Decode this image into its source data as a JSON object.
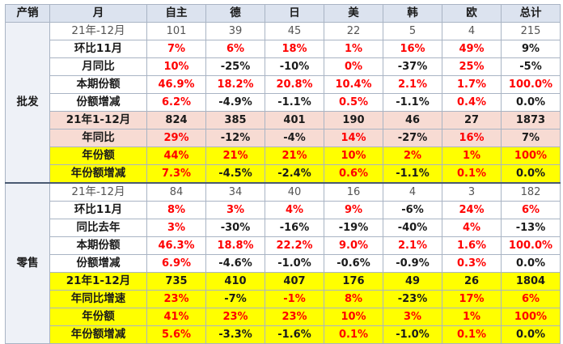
{
  "header": [
    "产销",
    "月",
    "自主",
    "德",
    "日",
    "美",
    "韩",
    "欧",
    "总计"
  ],
  "sections": [
    {
      "name": "批发",
      "rows": [
        {
          "label": "21年-12月",
          "style": "plain",
          "cells": [
            {
              "v": "101",
              "c": "gry"
            },
            {
              "v": "39",
              "c": "gry"
            },
            {
              "v": "45",
              "c": "gry"
            },
            {
              "v": "22",
              "c": "gry"
            },
            {
              "v": "5",
              "c": "gry"
            },
            {
              "v": "4",
              "c": "gry"
            },
            {
              "v": "215",
              "c": "gry"
            }
          ]
        },
        {
          "label": "环比11月",
          "style": "normal",
          "cells": [
            {
              "v": "7%",
              "c": "red"
            },
            {
              "v": "6%",
              "c": "red"
            },
            {
              "v": "18%",
              "c": "red"
            },
            {
              "v": "1%",
              "c": "red"
            },
            {
              "v": "16%",
              "c": "red"
            },
            {
              "v": "49%",
              "c": "red"
            },
            {
              "v": "9%",
              "c": "blk"
            }
          ]
        },
        {
          "label": "月同比",
          "style": "normal",
          "cells": [
            {
              "v": "10%",
              "c": "red"
            },
            {
              "v": "-25%",
              "c": "blk"
            },
            {
              "v": "-10%",
              "c": "blk"
            },
            {
              "v": "0%",
              "c": "red"
            },
            {
              "v": "-37%",
              "c": "blk"
            },
            {
              "v": "25%",
              "c": "red"
            },
            {
              "v": "-5%",
              "c": "blk"
            }
          ]
        },
        {
          "label": "本期份额",
          "style": "normal",
          "cells": [
            {
              "v": "46.9%",
              "c": "red"
            },
            {
              "v": "18.2%",
              "c": "red"
            },
            {
              "v": "20.8%",
              "c": "red"
            },
            {
              "v": "10.4%",
              "c": "red"
            },
            {
              "v": "2.1%",
              "c": "red"
            },
            {
              "v": "1.7%",
              "c": "red"
            },
            {
              "v": "100.0%",
              "c": "red"
            }
          ]
        },
        {
          "label": "份额增减",
          "style": "normal",
          "cells": [
            {
              "v": "6.2%",
              "c": "red"
            },
            {
              "v": "-4.9%",
              "c": "blk"
            },
            {
              "v": "-1.1%",
              "c": "blk"
            },
            {
              "v": "0.5%",
              "c": "red"
            },
            {
              "v": "-1.1%",
              "c": "blk"
            },
            {
              "v": "0.4%",
              "c": "red"
            },
            {
              "v": "0.0%",
              "c": "blk"
            }
          ]
        },
        {
          "label": "21年1-12月",
          "style": "pink",
          "cells": [
            {
              "v": "824",
              "c": "blk"
            },
            {
              "v": "385",
              "c": "blk"
            },
            {
              "v": "401",
              "c": "blk"
            },
            {
              "v": "190",
              "c": "blk"
            },
            {
              "v": "46",
              "c": "blk"
            },
            {
              "v": "27",
              "c": "blk"
            },
            {
              "v": "1873",
              "c": "blk"
            }
          ]
        },
        {
          "label": "年同比",
          "style": "pink",
          "cells": [
            {
              "v": "29%",
              "c": "red"
            },
            {
              "v": "-12%",
              "c": "blk"
            },
            {
              "v": "-4%",
              "c": "blk"
            },
            {
              "v": "14%",
              "c": "red"
            },
            {
              "v": "-27%",
              "c": "blk"
            },
            {
              "v": "16%",
              "c": "red"
            },
            {
              "v": "7%",
              "c": "blk"
            }
          ]
        },
        {
          "label": "年份额",
          "style": "yellow",
          "cells": [
            {
              "v": "44%",
              "c": "red"
            },
            {
              "v": "21%",
              "c": "red"
            },
            {
              "v": "21%",
              "c": "red"
            },
            {
              "v": "10%",
              "c": "red"
            },
            {
              "v": "2%",
              "c": "red"
            },
            {
              "v": "1%",
              "c": "red"
            },
            {
              "v": "100%",
              "c": "red"
            }
          ]
        },
        {
          "label": "年份额增减",
          "style": "yellow",
          "cells": [
            {
              "v": "7.3%",
              "c": "red"
            },
            {
              "v": "-4.5%",
              "c": "blk"
            },
            {
              "v": "-2.4%",
              "c": "blk"
            },
            {
              "v": "0.6%",
              "c": "red"
            },
            {
              "v": "-1.1%",
              "c": "blk"
            },
            {
              "v": "0.1%",
              "c": "red"
            },
            {
              "v": "0.0%",
              "c": "blk"
            }
          ]
        }
      ]
    },
    {
      "name": "零售",
      "rows": [
        {
          "label": "21年-12月",
          "style": "plain",
          "cells": [
            {
              "v": "84",
              "c": "gry"
            },
            {
              "v": "34",
              "c": "gry"
            },
            {
              "v": "40",
              "c": "gry"
            },
            {
              "v": "16",
              "c": "gry"
            },
            {
              "v": "4",
              "c": "gry"
            },
            {
              "v": "3",
              "c": "gry"
            },
            {
              "v": "182",
              "c": "gry"
            }
          ]
        },
        {
          "label": "环比11月",
          "style": "normal",
          "cells": [
            {
              "v": "8%",
              "c": "red"
            },
            {
              "v": "3%",
              "c": "red"
            },
            {
              "v": "4%",
              "c": "red"
            },
            {
              "v": "9%",
              "c": "red"
            },
            {
              "v": "-6%",
              "c": "blk"
            },
            {
              "v": "24%",
              "c": "red"
            },
            {
              "v": "6%",
              "c": "red"
            }
          ]
        },
        {
          "label": "同比去年",
          "style": "normal",
          "cells": [
            {
              "v": "3%",
              "c": "red"
            },
            {
              "v": "-30%",
              "c": "blk"
            },
            {
              "v": "-16%",
              "c": "blk"
            },
            {
              "v": "-19%",
              "c": "blk"
            },
            {
              "v": "-40%",
              "c": "blk"
            },
            {
              "v": "4%",
              "c": "red"
            },
            {
              "v": "-13%",
              "c": "blk"
            }
          ]
        },
        {
          "label": "本期份额",
          "style": "normal",
          "cells": [
            {
              "v": "46.3%",
              "c": "red"
            },
            {
              "v": "18.8%",
              "c": "red"
            },
            {
              "v": "22.2%",
              "c": "red"
            },
            {
              "v": "9.0%",
              "c": "red"
            },
            {
              "v": "2.1%",
              "c": "red"
            },
            {
              "v": "1.6%",
              "c": "red"
            },
            {
              "v": "100.0%",
              "c": "red"
            }
          ]
        },
        {
          "label": "份额增减",
          "style": "normal",
          "cells": [
            {
              "v": "6.9%",
              "c": "red"
            },
            {
              "v": "-4.6%",
              "c": "blk"
            },
            {
              "v": "-1.0%",
              "c": "blk"
            },
            {
              "v": "-0.6%",
              "c": "blk"
            },
            {
              "v": "-0.9%",
              "c": "blk"
            },
            {
              "v": "0.3%",
              "c": "red"
            },
            {
              "v": "0.0%",
              "c": "blk"
            }
          ]
        },
        {
          "label": "21年1-12月",
          "style": "yellow",
          "cells": [
            {
              "v": "735",
              "c": "blk"
            },
            {
              "v": "410",
              "c": "blk"
            },
            {
              "v": "407",
              "c": "blk"
            },
            {
              "v": "176",
              "c": "blk"
            },
            {
              "v": "49",
              "c": "blk"
            },
            {
              "v": "26",
              "c": "blk"
            },
            {
              "v": "1804",
              "c": "blk"
            }
          ]
        },
        {
          "label": "年同比增速",
          "style": "yellow",
          "cells": [
            {
              "v": "23%",
              "c": "red"
            },
            {
              "v": "-7%",
              "c": "blk"
            },
            {
              "v": "-1%",
              "c": "red"
            },
            {
              "v": "8%",
              "c": "red"
            },
            {
              "v": "-23%",
              "c": "blk"
            },
            {
              "v": "17%",
              "c": "red"
            },
            {
              "v": "6%",
              "c": "red"
            }
          ]
        },
        {
          "label": "年份额",
          "style": "yellow",
          "cells": [
            {
              "v": "41%",
              "c": "red"
            },
            {
              "v": "23%",
              "c": "red"
            },
            {
              "v": "23%",
              "c": "red"
            },
            {
              "v": "10%",
              "c": "red"
            },
            {
              "v": "3%",
              "c": "red"
            },
            {
              "v": "1%",
              "c": "red"
            },
            {
              "v": "100%",
              "c": "red"
            }
          ]
        },
        {
          "label": "年份额增减",
          "style": "yellow",
          "cells": [
            {
              "v": "5.6%",
              "c": "red"
            },
            {
              "v": "-3.3%",
              "c": "blk"
            },
            {
              "v": "-1.6%",
              "c": "blk"
            },
            {
              "v": "0.1%",
              "c": "red"
            },
            {
              "v": "-1.0%",
              "c": "blk"
            },
            {
              "v": "0.1%",
              "c": "red"
            },
            {
              "v": "0.0%",
              "c": "blk"
            }
          ]
        }
      ]
    }
  ],
  "colors": {
    "red": "#ff0000",
    "header_bg": "#dce3ef",
    "pink_row": "#f7dbd3",
    "yellow_row": "#ffff00"
  }
}
